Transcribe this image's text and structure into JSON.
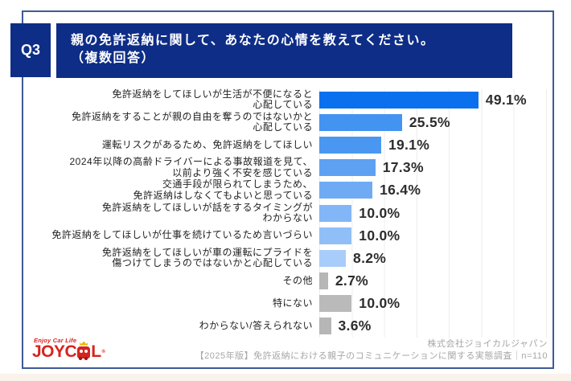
{
  "header": {
    "badge": "Q3",
    "title_line1": "親の免許返納に関して、あなたの心情を教えてください。",
    "title_line2": "（複数回答）"
  },
  "chart_data": {
    "type": "bar",
    "orientation": "horizontal",
    "title": "親の免許返納に関して、あなたの心情を教えてください。（複数回答）",
    "xlabel": "",
    "ylabel": "",
    "xlim": [
      0,
      70
    ],
    "gridline_interval": 10,
    "grid": true,
    "unit": "%",
    "categories": [
      "免許返納をしてほしいが生活が不便になると\n心配している",
      "免許返納をすることが親の自由を奪うのではないかと\n心配している",
      "運転リスクがあるため、免許返納をしてほしい",
      "2024年以降の高齢ドライバーによる事故報道を見て、\n以前より強く不安を感じている",
      "交通手段が限られてしまうため、\n免許返納はしなくてもよいと思っている",
      "免許返納をしてほしいが話をするタイミングが\nわからない",
      "免許返納をしてほしいが仕事を続けているため言いづらい",
      "免許返納をしてほしいが車の運転にプライドを\n傷つけてしまうのではないかと心配している",
      "その他",
      "特にない",
      "わからない/答えられない"
    ],
    "values": [
      49.1,
      25.5,
      19.1,
      17.3,
      16.4,
      10.0,
      10.0,
      8.2,
      2.7,
      10.0,
      3.6
    ],
    "value_labels": [
      "49.1%",
      "25.5%",
      "19.1%",
      "17.3%",
      "16.4%",
      "10.0%",
      "10.0%",
      "8.2%",
      "2.7%",
      "10.0%",
      "3.6%"
    ],
    "bar_colors": [
      "#0b70ee",
      "#4393f1",
      "#4a97f1",
      "#5ea1f3",
      "#6fabf5",
      "#83b6f7",
      "#90bff8",
      "#a9cdfa",
      "#b6b6b6",
      "#bababa",
      "#b6b6b6"
    ]
  },
  "logo": {
    "tagline": "Enjoy Car Life",
    "brand_left": "JOYC",
    "brand_right": "L",
    "registered": "®"
  },
  "footer": {
    "company": "株式会社ジョイカルジャパン",
    "survey": "【2025年版】免許返納における親子のコミュニケーションに関する実態調査｜n=110"
  },
  "colors": {
    "header_navy": "#0e2d87",
    "frame_border": "#3e5a96",
    "gridline": "#ececec",
    "value_text": "#2d2d2d",
    "category_text": "#1f1f1f",
    "footer_text": "#a6a6a6",
    "logo_red": "#d7231d",
    "crown_yellow": "#f5b300"
  }
}
